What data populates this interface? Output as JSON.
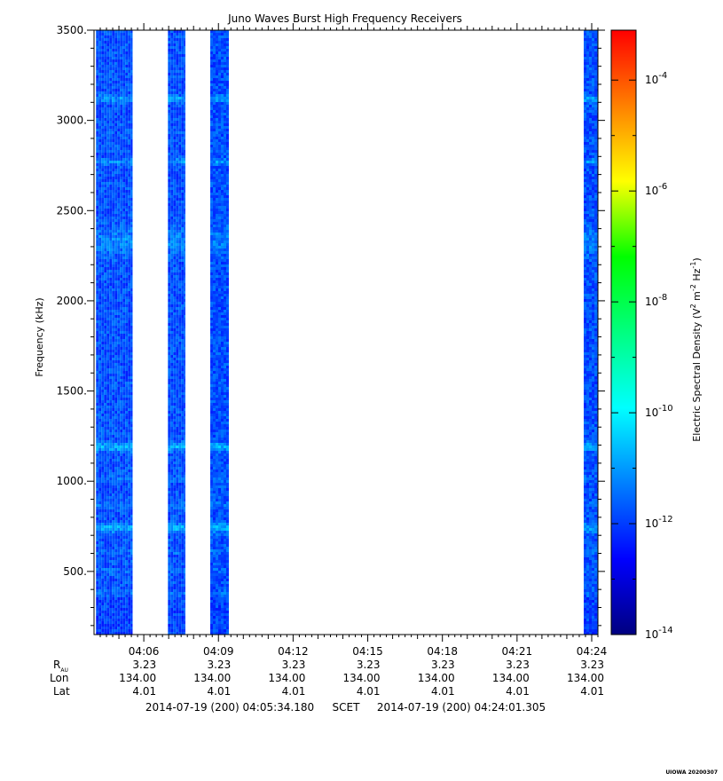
{
  "chart_data": {
    "type": "heatmap",
    "title": "Juno Waves Burst High Frequency Receivers",
    "ylabel": "Frequency (kHz)",
    "ylim": [
      150,
      3500
    ],
    "y_ticks": [
      {
        "value": 500,
        "label": "500."
      },
      {
        "value": 1000,
        "label": "1000."
      },
      {
        "value": 1500,
        "label": "1500."
      },
      {
        "value": 2000,
        "label": "2000."
      },
      {
        "value": 2500,
        "label": "2500."
      },
      {
        "value": 3000,
        "label": "3000."
      },
      {
        "value": 3500,
        "label": "3500."
      }
    ],
    "x_range_minutes": [
      4.0,
      24.25
    ],
    "x_ticks": [
      {
        "minute": 6,
        "label": "04:06",
        "r_au": "3.23",
        "lon": "134.00",
        "lat": "4.01"
      },
      {
        "minute": 9,
        "label": "04:09",
        "r_au": "3.23",
        "lon": "134.00",
        "lat": "4.01"
      },
      {
        "minute": 12,
        "label": "04:12",
        "r_au": "3.23",
        "lon": "134.00",
        "lat": "4.01"
      },
      {
        "minute": 15,
        "label": "04:15",
        "r_au": "3.23",
        "lon": "134.00",
        "lat": "4.01"
      },
      {
        "minute": 18,
        "label": "04:18",
        "r_au": "3.23",
        "lon": "134.00",
        "lat": "4.01"
      },
      {
        "minute": 21,
        "label": "04:21",
        "r_au": "3.23",
        "lon": "134.00",
        "lat": "4.01"
      },
      {
        "minute": 24,
        "label": "04:24",
        "r_au": "3.23",
        "lon": "134.00",
        "lat": "4.01"
      }
    ],
    "ephemeris_labels": {
      "r": "R",
      "r_sub": "AU",
      "lon": "Lon",
      "lat": "Lat"
    },
    "time_span": {
      "start": "2014-07-19 (200) 04:05:34.180",
      "middle": "SCET",
      "end": "2014-07-19 (200) 04:24:01.305"
    },
    "data_blocks_minutes": [
      [
        4.08,
        5.55
      ],
      [
        6.97,
        7.67
      ],
      [
        8.67,
        9.42
      ],
      [
        23.68,
        24.4
      ]
    ],
    "emission_bands_khz": [
      {
        "freq": 3120,
        "intensity": 0.9,
        "width": 10
      },
      {
        "freq": 2770,
        "intensity": 0.75,
        "width": 10
      },
      {
        "freq": 2330,
        "intensity": 0.55,
        "width": 90
      },
      {
        "freq": 1190,
        "intensity": 1.0,
        "width": 18
      },
      {
        "freq": 740,
        "intensity": 1.0,
        "width": 22
      },
      {
        "freq": 870,
        "intensity": 0.35,
        "width": 8
      },
      {
        "freq": 1010,
        "intensity": 0.3,
        "width": 8
      },
      {
        "freq": 610,
        "intensity": 0.3,
        "width": 8
      },
      {
        "freq": 500,
        "intensity": 0.25,
        "width": 8
      },
      {
        "freq": 380,
        "intensity": 0.3,
        "width": 8
      }
    ],
    "colorbar": {
      "label": "Electric Spectral Density (V2 m-2 Hz-1)",
      "label_parts": {
        "pre": "Electric Spectral Density (V",
        "sup1": "2",
        "mid": " m",
        "sup2": "-2",
        "mid2": " Hz",
        "sup3": "-1",
        "post": ")"
      },
      "scale": "log",
      "range_log10": [
        -14,
        -3.1
      ],
      "ticks": [
        {
          "exponent": -4,
          "base": "10",
          "sup": "-4"
        },
        {
          "exponent": -6,
          "base": "10",
          "sup": "-6"
        },
        {
          "exponent": -8,
          "base": "10",
          "sup": "-8"
        },
        {
          "exponent": -10,
          "base": "10",
          "sup": "-10"
        },
        {
          "exponent": -12,
          "base": "10",
          "sup": "-12"
        },
        {
          "exponent": -14,
          "base": "10",
          "sup": "-14"
        }
      ],
      "colors": [
        "#000080",
        "#0000ff",
        "#0080ff",
        "#00ffff",
        "#00ff80",
        "#00ff00",
        "#ffff00",
        "#ff8000",
        "#ff0000"
      ]
    },
    "background_level_log10": -11.8,
    "grid": false
  },
  "footer_stamp": "UIOWA 20200307"
}
